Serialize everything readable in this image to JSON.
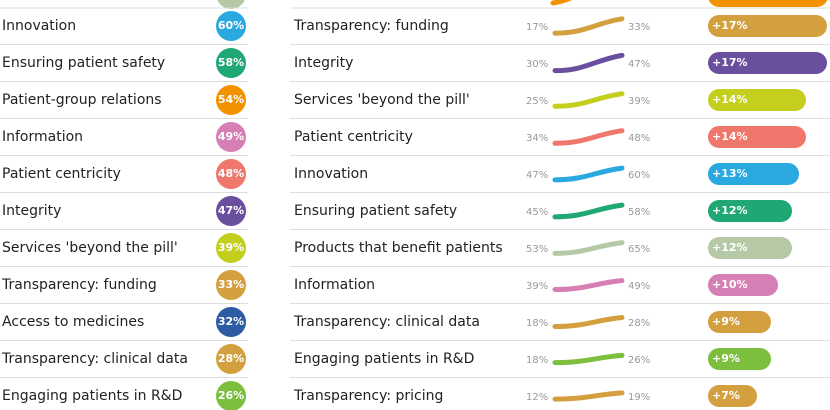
{
  "left": {
    "rows": [
      {
        "label": "Innovation",
        "value": 60,
        "value_label": "60%",
        "color": "#2aa8e0"
      },
      {
        "label": "Ensuring patient safety",
        "value": 58,
        "value_label": "58%",
        "color": "#1fa774"
      },
      {
        "label": "Patient-group relations",
        "value": 54,
        "value_label": "54%",
        "color": "#f39200"
      },
      {
        "label": "Information",
        "value": 49,
        "value_label": "49%",
        "color": "#d67fb5"
      },
      {
        "label": "Patient centricity",
        "value": 48,
        "value_label": "48%",
        "color": "#ef776b"
      },
      {
        "label": "Integrity",
        "value": 47,
        "value_label": "47%",
        "color": "#6a4f9f"
      },
      {
        "label": "Services 'beyond the pill'",
        "value": 39,
        "value_label": "39%",
        "color": "#c3cf1c"
      },
      {
        "label": "Transparency: funding",
        "value": 33,
        "value_label": "33%",
        "color": "#d4a03f"
      },
      {
        "label": "Access to medicines",
        "value": 32,
        "value_label": "32%",
        "color": "#2e5ca4"
      },
      {
        "label": "Transparency: clinical data",
        "value": 28,
        "value_label": "28%",
        "color": "#d4a03f"
      },
      {
        "label": "Engaging patients in R&D",
        "value": 26,
        "value_label": "26%",
        "color": "#7cbf3f"
      }
    ]
  },
  "right": {
    "rows": [
      {
        "label": "Transparency: funding",
        "start": 17,
        "start_label": "17%",
        "end": 33,
        "end_label": "33%",
        "change": 17,
        "change_label": "+17%",
        "color": "#d4a03f"
      },
      {
        "label": "Integrity",
        "start": 30,
        "start_label": "30%",
        "end": 47,
        "end_label": "47%",
        "change": 17,
        "change_label": "+17%",
        "color": "#6a4f9f"
      },
      {
        "label": "Services 'beyond the pill'",
        "start": 25,
        "start_label": "25%",
        "end": 39,
        "end_label": "39%",
        "change": 14,
        "change_label": "+14%",
        "color": "#c3cf1c"
      },
      {
        "label": "Patient centricity",
        "start": 34,
        "start_label": "34%",
        "end": 48,
        "end_label": "48%",
        "change": 14,
        "change_label": "+14%",
        "color": "#ef776b"
      },
      {
        "label": "Innovation",
        "start": 47,
        "start_label": "47%",
        "end": 60,
        "end_label": "60%",
        "change": 13,
        "change_label": "+13%",
        "color": "#2aa8e0"
      },
      {
        "label": "Ensuring patient safety",
        "start": 45,
        "start_label": "45%",
        "end": 58,
        "end_label": "58%",
        "change": 12,
        "change_label": "+12%",
        "color": "#1fa774"
      },
      {
        "label": "Products that benefit patients",
        "start": 53,
        "start_label": "53%",
        "end": 65,
        "end_label": "65%",
        "change": 12,
        "change_label": "+12%",
        "color": "#b5c9a6"
      },
      {
        "label": "Information",
        "start": 39,
        "start_label": "39%",
        "end": 49,
        "end_label": "49%",
        "change": 10,
        "change_label": "+10%",
        "color": "#d67fb5"
      },
      {
        "label": "Transparency: clinical data",
        "start": 18,
        "start_label": "18%",
        "end": 28,
        "end_label": "28%",
        "change": 9,
        "change_label": "+9%",
        "color": "#d4a03f"
      },
      {
        "label": "Engaging patients in R&D",
        "start": 18,
        "start_label": "18%",
        "end": 26,
        "end_label": "26%",
        "change": 9,
        "change_label": "+9%",
        "color": "#7cbf3f"
      },
      {
        "label": "Transparency: pricing",
        "start": 12,
        "start_label": "12%",
        "end": 19,
        "end_label": "19%",
        "change": 7,
        "change_label": "+7%",
        "color": "#d4a03f"
      }
    ]
  }
}
